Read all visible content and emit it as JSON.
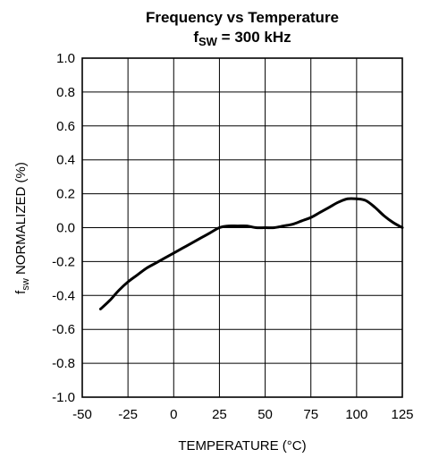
{
  "chart_data": {
    "type": "line",
    "title": "Frequency vs Temperature",
    "subtitle": {
      "prefix": "f",
      "subscript": "SW",
      "suffix": " = 300 kHz"
    },
    "xlabel": "TEMPERATURE (°C)",
    "ylabel": {
      "prefix": "f",
      "subscript": "sw",
      "suffix": " NORMALIZED (%)"
    },
    "xlim": [
      -50,
      125
    ],
    "ylim": [
      -1.0,
      1.0
    ],
    "x_ticks": [
      -50,
      -25,
      0,
      25,
      50,
      75,
      100,
      125
    ],
    "x_tick_labels": [
      "-50",
      "-25",
      "0",
      "25",
      "50",
      "75",
      "100",
      "125"
    ],
    "y_ticks": [
      1.0,
      0.8,
      0.6,
      0.4,
      0.2,
      0.0,
      -0.2,
      -0.4,
      -0.6,
      -0.8,
      -1.0
    ],
    "y_tick_labels": [
      "1.0",
      "0.8",
      "0.6",
      "0.4",
      "0.2",
      "0.0",
      "-0.2",
      "-0.4",
      "-0.6",
      "-0.8",
      "-1.0"
    ],
    "grid": true,
    "series": [
      {
        "color": "#000000",
        "x": [
          -40,
          -35,
          -30,
          -25,
          -20,
          -15,
          -10,
          -5,
          0,
          5,
          10,
          15,
          20,
          25,
          30,
          35,
          40,
          45,
          50,
          55,
          60,
          65,
          70,
          75,
          80,
          85,
          90,
          95,
          100,
          105,
          110,
          115,
          120,
          125
        ],
        "y": [
          -0.48,
          -0.43,
          -0.37,
          -0.32,
          -0.28,
          -0.24,
          -0.21,
          -0.18,
          -0.15,
          -0.12,
          -0.09,
          -0.06,
          -0.03,
          0.0,
          0.01,
          0.01,
          0.01,
          0.0,
          0.0,
          0.0,
          0.01,
          0.02,
          0.04,
          0.06,
          0.09,
          0.12,
          0.15,
          0.17,
          0.17,
          0.16,
          0.12,
          0.07,
          0.03,
          0.0
        ]
      }
    ]
  }
}
